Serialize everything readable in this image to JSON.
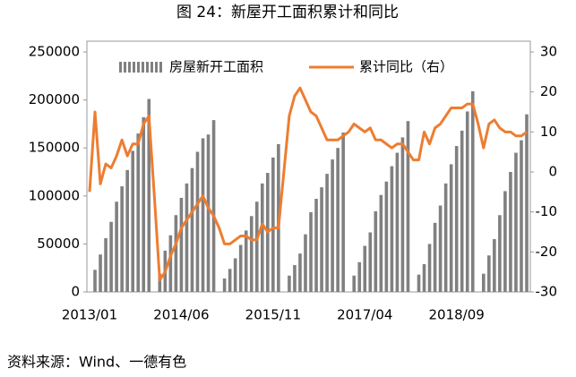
{
  "chart_data": {
    "type": "bar_line",
    "title": "图 24：新屋开工面积累计和同比",
    "source": "资料来源：Wind、一德有色",
    "categories": [
      "2013/01",
      null,
      null,
      null,
      null,
      null,
      null,
      null,
      null,
      null,
      null,
      null,
      null,
      null,
      null,
      null,
      null,
      "2014/06",
      null,
      null,
      null,
      null,
      null,
      null,
      null,
      null,
      null,
      null,
      null,
      null,
      null,
      null,
      null,
      null,
      "2015/11",
      null,
      null,
      null,
      null,
      null,
      null,
      null,
      null,
      null,
      null,
      null,
      null,
      null,
      null,
      null,
      null,
      "2017/04",
      null,
      null,
      null,
      null,
      null,
      null,
      null,
      null,
      null,
      null,
      null,
      null,
      null,
      null,
      null,
      null,
      "2018/09",
      null,
      null,
      null,
      null,
      null,
      null,
      null,
      null,
      null,
      null,
      null,
      null,
      null
    ],
    "series": [
      {
        "name": "房屋新开工面积",
        "color": "#808080",
        "kind": "bar",
        "values": [
          null,
          23000,
          39000,
          56000,
          73000,
          94000,
          110000,
          127000,
          147000,
          165000,
          182000,
          201000,
          null,
          19000,
          43000,
          59000,
          80000,
          98000,
          113000,
          129000,
          146000,
          160000,
          164000,
          179000,
          null,
          14000,
          24000,
          35000,
          49000,
          64000,
          79000,
          94000,
          113000,
          124000,
          140000,
          154000,
          null,
          17000,
          28000,
          40000,
          60000,
          83000,
          97000,
          109000,
          123000,
          138000,
          150000,
          166000,
          null,
          17000,
          31000,
          48000,
          62000,
          84000,
          101000,
          115000,
          131000,
          145000,
          161000,
          178000,
          null,
          18000,
          29000,
          50000,
          72000,
          90000,
          113000,
          133000,
          152000,
          168000,
          188000,
          209000,
          null,
          19000,
          38000,
          55000,
          80000,
          105000,
          125000,
          145000,
          158000,
          185000
        ]
      },
      {
        "name": "累计同比（右）",
        "color": "#ed7d31",
        "kind": "line",
        "axis": "y2",
        "values": [
          -5,
          15,
          -3,
          2,
          1,
          4,
          8,
          4,
          7,
          7,
          12,
          14,
          -6,
          -27,
          -25,
          -21,
          -18,
          -14,
          -12,
          -10,
          -8,
          -6,
          -9,
          -11,
          -14,
          -18,
          -18,
          -17,
          -16,
          -16,
          -17,
          -17,
          -13,
          -15,
          -14,
          -14,
          0,
          14,
          19,
          21,
          18,
          15,
          14,
          11,
          8,
          8,
          8,
          9,
          10,
          12,
          11,
          10,
          11,
          8,
          8,
          7,
          6,
          7,
          7,
          5,
          3,
          3,
          10,
          7,
          11,
          12,
          14,
          16,
          16,
          16,
          17,
          17,
          12,
          6,
          12,
          13,
          11,
          10,
          10,
          9,
          9,
          10
        ]
      }
    ],
    "ylim": [
      0,
      250000
    ],
    "yticks": [
      0,
      50000,
      100000,
      150000,
      200000,
      250000
    ],
    "y2lim": [
      -30,
      30
    ],
    "y2ticks": [
      -30,
      -20,
      -10,
      0,
      10,
      20,
      30
    ]
  }
}
